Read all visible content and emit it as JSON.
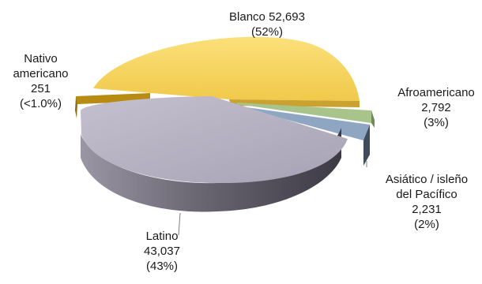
{
  "chart_data": {
    "type": "pie",
    "title": "",
    "slices": [
      {
        "label": "Blanco",
        "value": 52693,
        "value_text": "52,693",
        "pct_text": "(52%)",
        "color": "#f7d25c"
      },
      {
        "label": "Afroamericano",
        "value": 2792,
        "value_text": "2,792",
        "pct_text": "(3%)",
        "color": "#a9c48a"
      },
      {
        "label": "Asiático / isleño del Pacífico",
        "value": 2231,
        "value_text": "2,231",
        "pct_text": "(2%)",
        "color": "#8ea6c2"
      },
      {
        "label": "Latino",
        "value": 43037,
        "value_text": "43,037",
        "pct_text": "(43%)",
        "color": "#b4b0c0"
      },
      {
        "label": "Nativo americano",
        "value": 251,
        "value_text": "251",
        "pct_text": "(<1.0%)",
        "color": "#d6a31c"
      }
    ]
  },
  "labels": {
    "blanco": {
      "line1": "Blanco 52,693",
      "line2": "(52%)"
    },
    "afro": {
      "line1": "Afroamericano",
      "line2": "2,792",
      "line3": "(3%)"
    },
    "asian": {
      "line1": "Asiático / isleño",
      "line2": "del Pacífico",
      "line3": "2,231",
      "line4": "(2%)"
    },
    "latino": {
      "line1": "Latino",
      "line2": "43,037",
      "line3": "(43%)"
    },
    "nativo": {
      "line1": "Nativo",
      "line2": "americano",
      "line3": "251",
      "line4": "(<1.0%)"
    }
  }
}
